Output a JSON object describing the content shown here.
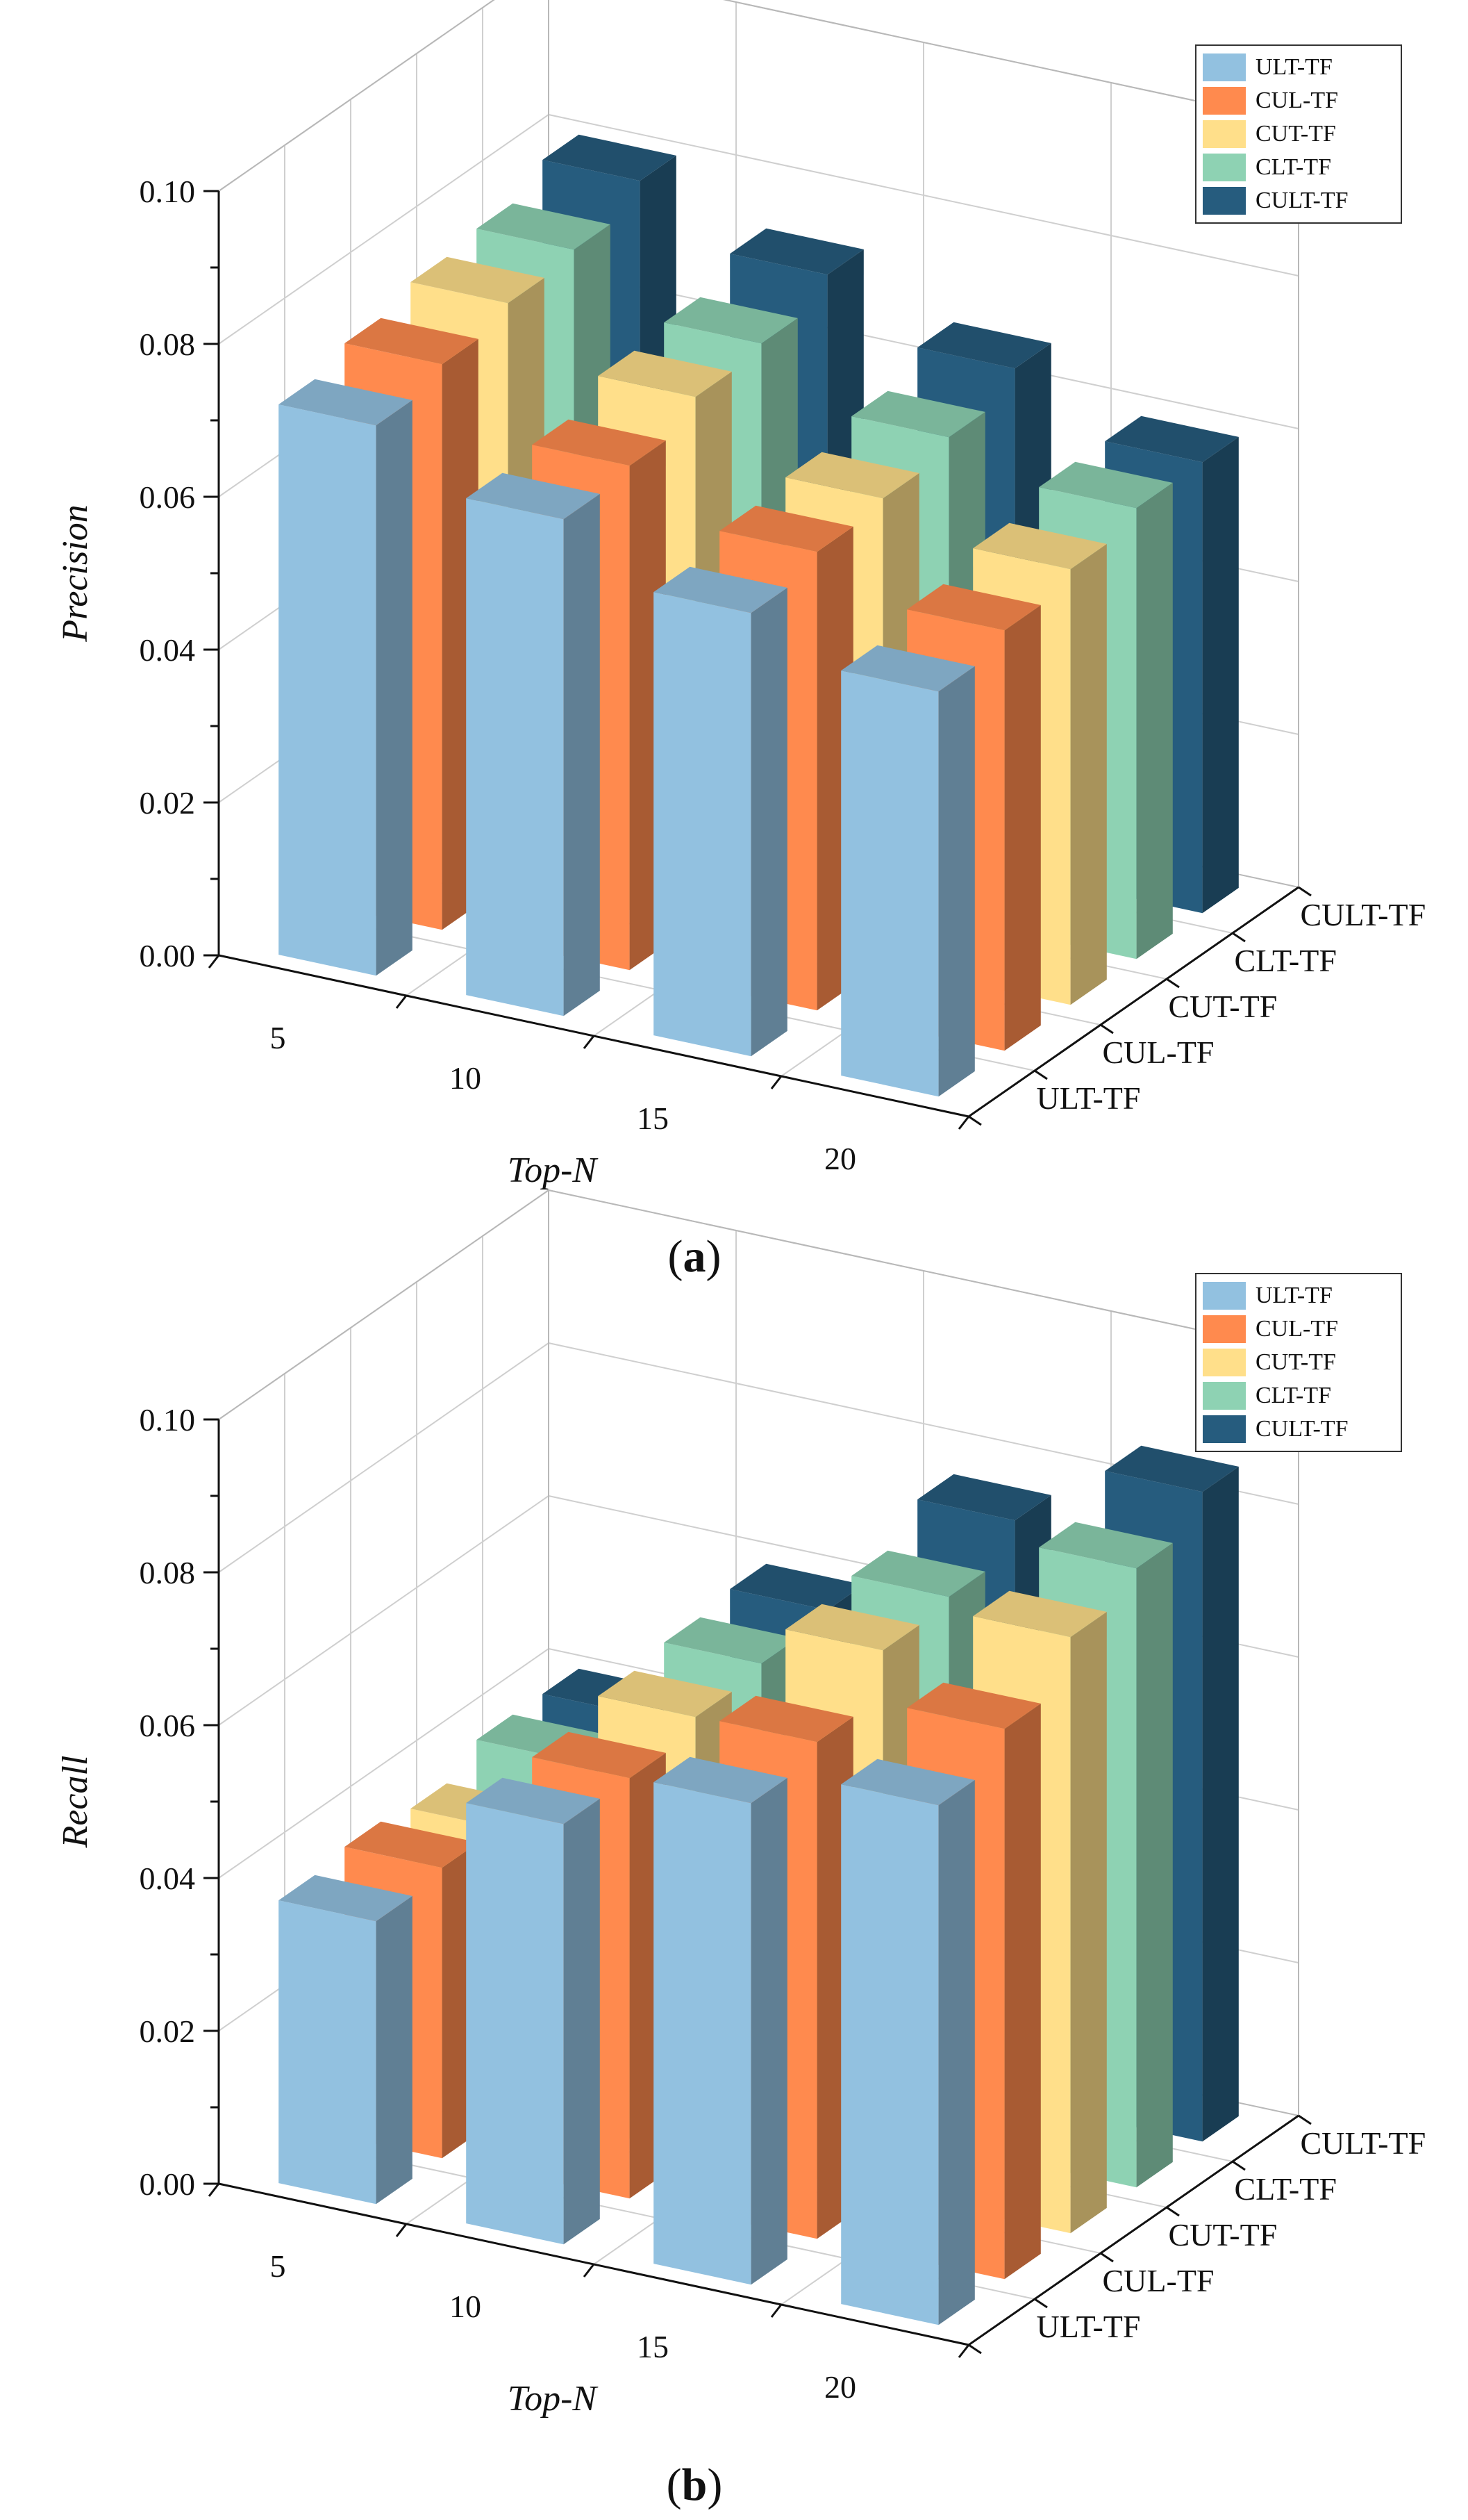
{
  "colors": {
    "ULT-TF": "#92C1E0",
    "CUL-TF": "#FF8A4E",
    "CUT-TF": "#FFDF8A",
    "CLT-TF": "#8ED2B3",
    "CULT-TF": "#265C7E"
  },
  "chart_data": [
    {
      "type": "bar3d",
      "panel_label": "a",
      "xlabel": "Top-N",
      "ylabel": "Precision",
      "ylim": [
        0,
        0.1
      ],
      "yticks": [
        "0.00",
        "0.02",
        "0.04",
        "0.06",
        "0.08",
        "0.10"
      ],
      "categories": [
        "5",
        "10",
        "15",
        "20"
      ],
      "legend": [
        "ULT-TF",
        "CUL-TF",
        "CUT-TF",
        "CLT-TF",
        "CULT-TF"
      ],
      "legend_position": "top-right",
      "series": [
        {
          "name": "ULT-TF",
          "values": [
            0.072,
            0.065,
            0.058,
            0.053
          ]
        },
        {
          "name": "CUL-TF",
          "values": [
            0.074,
            0.066,
            0.06,
            0.055
          ]
        },
        {
          "name": "CUT-TF",
          "values": [
            0.076,
            0.069,
            0.061,
            0.057
          ]
        },
        {
          "name": "CLT-TF",
          "values": [
            0.077,
            0.07,
            0.063,
            0.059
          ]
        },
        {
          "name": "CULT-TF",
          "values": [
            0.08,
            0.073,
            0.066,
            0.059
          ]
        }
      ]
    },
    {
      "type": "bar3d",
      "panel_label": "b",
      "xlabel": "Top-N",
      "ylabel": "Recall",
      "ylim": [
        0,
        0.1
      ],
      "yticks": [
        "0.00",
        "0.02",
        "0.04",
        "0.06",
        "0.08",
        "0.10"
      ],
      "categories": [
        "5",
        "10",
        "15",
        "20"
      ],
      "legend": [
        "ULT-TF",
        "CUL-TF",
        "CUT-TF",
        "CLT-TF",
        "CULT-TF"
      ],
      "legend_position": "top-right",
      "series": [
        {
          "name": "ULT-TF",
          "values": [
            0.037,
            0.055,
            0.063,
            0.068
          ]
        },
        {
          "name": "CUL-TF",
          "values": [
            0.038,
            0.055,
            0.065,
            0.072
          ]
        },
        {
          "name": "CUT-TF",
          "values": [
            0.037,
            0.057,
            0.071,
            0.078
          ]
        },
        {
          "name": "CLT-TF",
          "values": [
            0.04,
            0.058,
            0.072,
            0.081
          ]
        },
        {
          "name": "CULT-TF",
          "values": [
            0.04,
            0.059,
            0.076,
            0.085
          ]
        }
      ]
    }
  ]
}
